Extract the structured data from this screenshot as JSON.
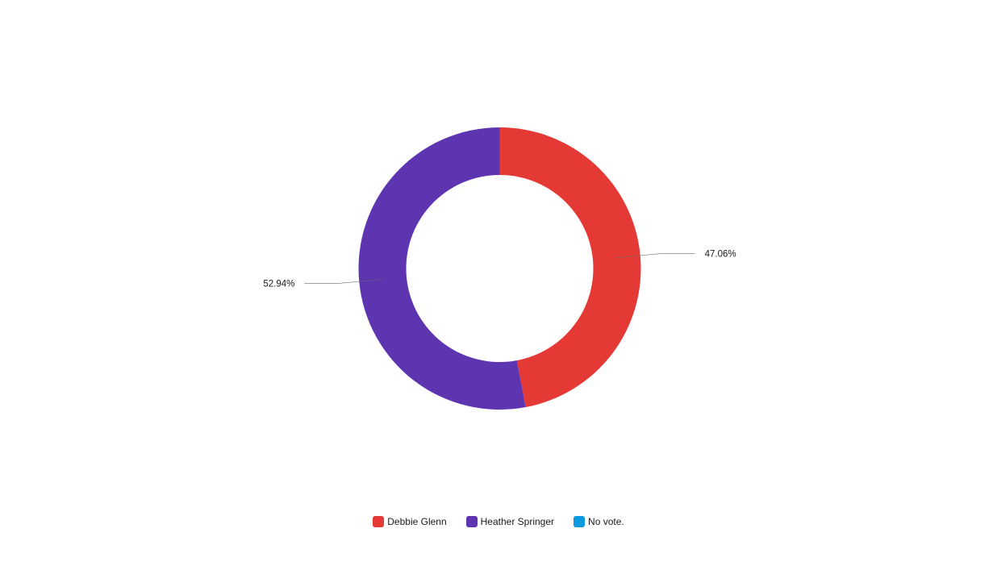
{
  "chart_data": {
    "type": "pie",
    "donut": true,
    "categories": [
      "Debbie Glenn",
      "Heather Springer",
      "No vote."
    ],
    "values": [
      47.06,
      52.94,
      0
    ],
    "colors": [
      "#e53935",
      "#5e35b1",
      "#0b9ae0"
    ],
    "data_labels": [
      "47.06%",
      "52.94%",
      ""
    ],
    "title": "",
    "legend_position": "bottom"
  },
  "legend": {
    "items": [
      {
        "label": "Debbie Glenn",
        "color": "#e53935"
      },
      {
        "label": "Heather Springer",
        "color": "#5e35b1"
      },
      {
        "label": "No vote.",
        "color": "#0b9ae0"
      }
    ]
  }
}
